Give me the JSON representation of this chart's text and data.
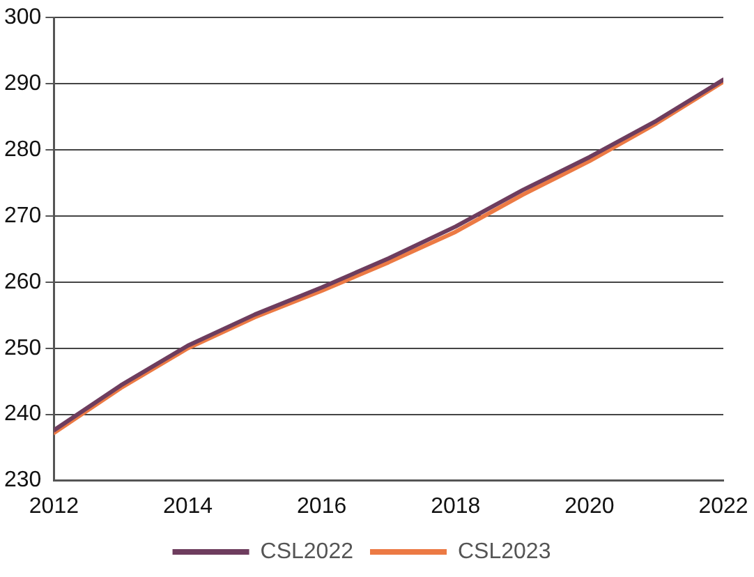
{
  "chart_data": {
    "type": "line",
    "x": [
      2012,
      2013,
      2014,
      2015,
      2016,
      2017,
      2018,
      2019,
      2020,
      2021,
      2022
    ],
    "xlim": [
      2012,
      2022
    ],
    "xticks": [
      2012,
      2014,
      2016,
      2018,
      2020,
      2022
    ],
    "ylim": [
      230,
      300
    ],
    "yticks": [
      230,
      240,
      250,
      260,
      270,
      280,
      290,
      300
    ],
    "grid": "y",
    "legend": "bottom",
    "marker": "none",
    "line_style": "solid",
    "series": [
      {
        "name": "CSL2022",
        "color": "#6e3d5e",
        "values": [
          237.6,
          244.4,
          250.4,
          255.1,
          259.2,
          263.6,
          268.4,
          273.9,
          278.9,
          284.4,
          290.6
        ]
      },
      {
        "name": "CSL2023",
        "color": "#ec7a44",
        "values": [
          237.2,
          244.0,
          250.0,
          254.7,
          258.7,
          263.0,
          267.6,
          273.2,
          278.3,
          284.0,
          290.3
        ]
      }
    ]
  }
}
